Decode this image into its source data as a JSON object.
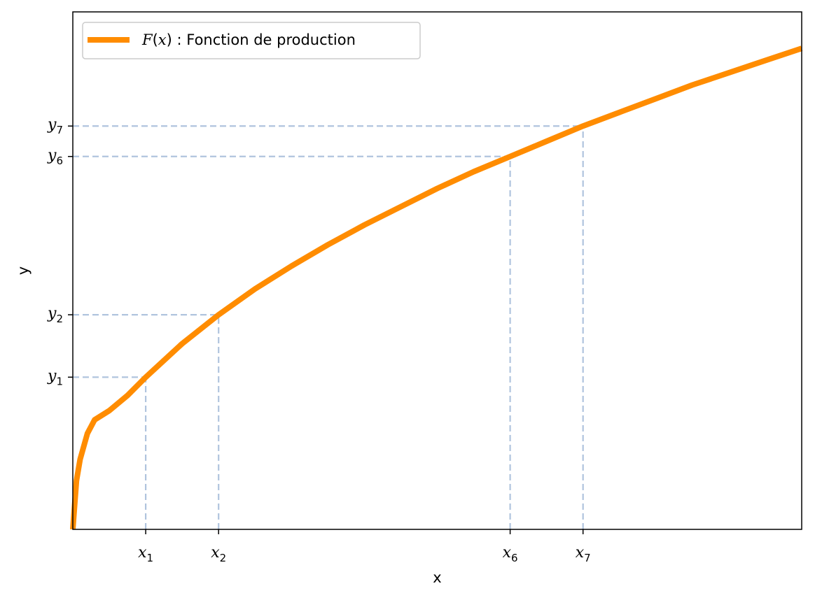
{
  "chart_data": {
    "type": "line",
    "title": "",
    "xlabel": "x",
    "ylabel": "y",
    "xlim": [
      0,
      10
    ],
    "ylim": [
      0,
      3.4
    ],
    "series": [
      {
        "name": "F(x) : Fonction de production",
        "color": "#ff8c00",
        "x": [
          0,
          0.05,
          0.1,
          0.2,
          0.3,
          0.5,
          0.75,
          1,
          1.5,
          2,
          2.5,
          3,
          3.5,
          4,
          4.5,
          5,
          5.5,
          6,
          6.5,
          7,
          7.5,
          8,
          8.5,
          9,
          9.5,
          10
        ],
        "y": [
          0,
          0.32,
          0.46,
          0.63,
          0.72,
          0.78,
          0.88,
          1.0,
          1.22,
          1.41,
          1.58,
          1.73,
          1.87,
          2.0,
          2.12,
          2.24,
          2.35,
          2.45,
          2.55,
          2.65,
          2.74,
          2.83,
          2.92,
          3.0,
          3.08,
          3.16
        ]
      }
    ],
    "marked_points": [
      {
        "x_label": "x",
        "x_sub": "1",
        "y_label": "y",
        "y_sub": "1",
        "x": 1,
        "y": 1.0
      },
      {
        "x_label": "x",
        "x_sub": "2",
        "y_label": "y",
        "y_sub": "2",
        "x": 2,
        "y": 1.41
      },
      {
        "x_label": "x",
        "x_sub": "6",
        "y_label": "y",
        "y_sub": "6",
        "x": 6,
        "y": 2.45
      },
      {
        "x_label": "x",
        "x_sub": "7",
        "y_label": "y",
        "y_sub": "7",
        "x": 7,
        "y": 2.65
      }
    ],
    "guide_color": "#b0c4de",
    "legend": {
      "position": "top-left",
      "f_symbol": "F",
      "f_arg": "(",
      "f_var": "x",
      "f_close": ")",
      "text": " : Fonction de production"
    },
    "grid": false
  }
}
